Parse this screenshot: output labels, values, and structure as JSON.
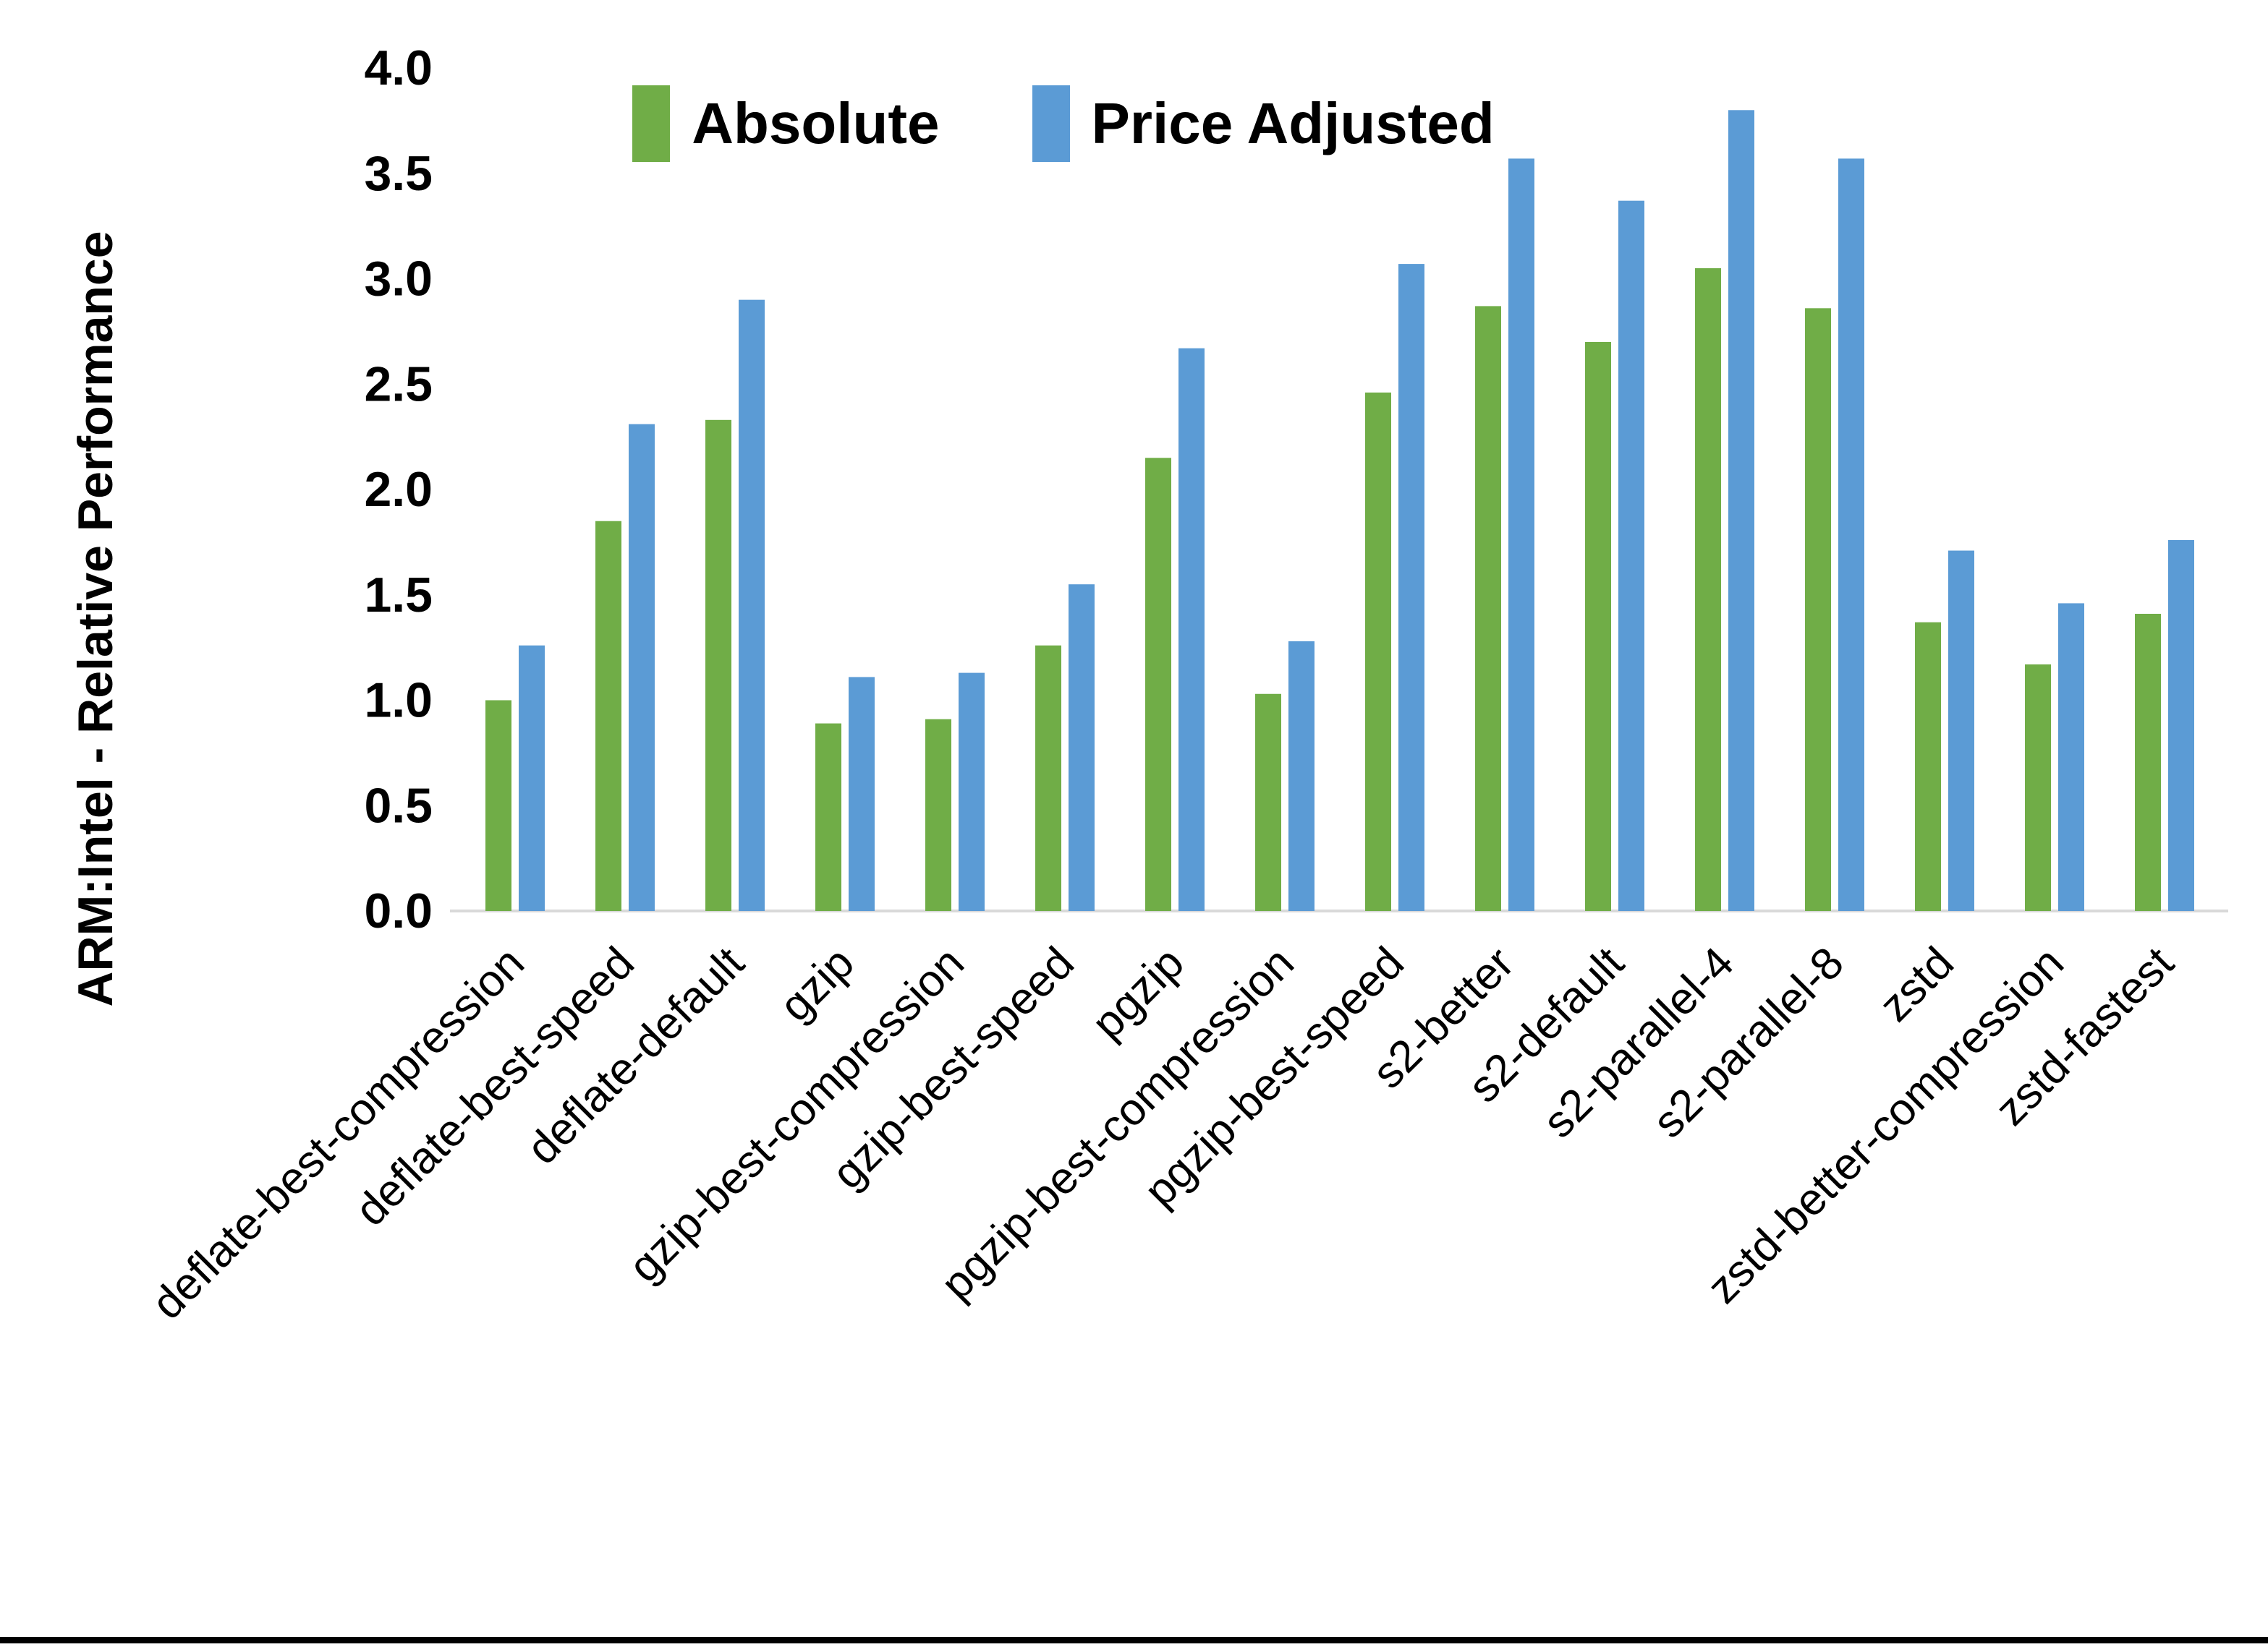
{
  "chart_data": {
    "type": "bar",
    "title": "",
    "xlabel": "",
    "ylabel": "ARM:Intel - Relative Performance",
    "ylim": [
      0.0,
      4.0
    ],
    "ytick_step": 0.5,
    "yticks": [
      "0.0",
      "0.5",
      "1.0",
      "1.5",
      "2.0",
      "2.5",
      "3.0",
      "3.5",
      "4.0"
    ],
    "grid": false,
    "legend_position": "top-center",
    "categories": [
      "deflate-best-compression",
      "deflate-best-speed",
      "deflate-default",
      "gzip",
      "gzip-best-compression",
      "gzip-best-speed",
      "pgzip",
      "pgzip-best-compression",
      "pgzip-best-speed",
      "s2-better",
      "s2-default",
      "s2-parallel-4",
      "s2-parallel-8",
      "zstd",
      "zstd-better-compression",
      "zstd-fastest"
    ],
    "series": [
      {
        "name": "Absolute",
        "color": "#70AD47",
        "values": [
          1.0,
          1.85,
          2.33,
          0.89,
          0.91,
          1.26,
          2.15,
          1.03,
          2.46,
          2.87,
          2.7,
          3.05,
          2.86,
          1.37,
          1.17,
          1.41
        ]
      },
      {
        "name": "Price Adjusted",
        "color": "#5B9BD5",
        "values": [
          1.26,
          2.31,
          2.9,
          1.11,
          1.13,
          1.55,
          2.67,
          1.28,
          3.07,
          3.57,
          3.37,
          3.8,
          3.57,
          1.71,
          1.46,
          1.76
        ]
      }
    ],
    "axis_line_color": "#D9D9D9",
    "text_color": "#000000"
  }
}
